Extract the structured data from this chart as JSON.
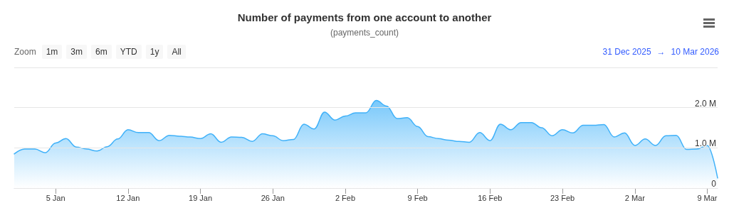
{
  "chart_data": {
    "type": "area",
    "title": "Number of payments from one account to another",
    "subtitle": "(payments_count)",
    "annotations": [
      "Zoom",
      "1m",
      "3m",
      "6m",
      "YTD",
      "1y",
      "All",
      "31 Dec 2025",
      "→",
      "10 Mar 2026"
    ],
    "x": [
      "2026-01-01",
      "2026-01-02",
      "2026-01-03",
      "2026-01-04",
      "2026-01-05",
      "2026-01-06",
      "2026-01-07",
      "2026-01-08",
      "2026-01-09",
      "2026-01-10",
      "2026-01-11",
      "2026-01-12",
      "2026-01-13",
      "2026-01-14",
      "2026-01-15",
      "2026-01-16",
      "2026-01-17",
      "2026-01-18",
      "2026-01-19",
      "2026-01-20",
      "2026-01-21",
      "2026-01-22",
      "2026-01-23",
      "2026-01-24",
      "2026-01-25",
      "2026-01-26",
      "2026-01-27",
      "2026-01-28",
      "2026-01-29",
      "2026-01-30",
      "2026-01-31",
      "2026-02-01",
      "2026-02-02",
      "2026-02-03",
      "2026-02-04",
      "2026-02-05",
      "2026-02-06",
      "2026-02-07",
      "2026-02-08",
      "2026-02-09",
      "2026-02-10",
      "2026-02-11",
      "2026-02-12",
      "2026-02-13",
      "2026-02-14",
      "2026-02-15",
      "2026-02-16",
      "2026-02-17",
      "2026-02-18",
      "2026-02-19",
      "2026-02-20",
      "2026-02-21",
      "2026-02-22",
      "2026-02-23",
      "2026-02-24",
      "2026-02-25",
      "2026-02-26",
      "2026-02-27",
      "2026-02-28",
      "2026-03-01",
      "2026-03-02",
      "2026-03-03",
      "2026-03-04",
      "2026-03-05",
      "2026-03-06",
      "2026-03-07",
      "2026-03-08",
      "2026-03-09",
      "2026-03-10"
    ],
    "values": [
      850000,
      970000,
      970000,
      880000,
      1120000,
      1230000,
      1020000,
      970000,
      920000,
      1030000,
      1220000,
      1450000,
      1380000,
      1380000,
      1180000,
      1310000,
      1290000,
      1270000,
      1230000,
      1350000,
      1140000,
      1270000,
      1260000,
      1160000,
      1350000,
      1300000,
      1180000,
      1210000,
      1590000,
      1470000,
      1890000,
      1690000,
      1790000,
      1870000,
      1870000,
      2180000,
      2040000,
      1730000,
      1750000,
      1530000,
      1280000,
      1230000,
      1190000,
      1160000,
      1140000,
      1380000,
      1180000,
      1590000,
      1450000,
      1630000,
      1630000,
      1500000,
      1300000,
      1450000,
      1370000,
      1560000,
      1560000,
      1580000,
      1270000,
      1370000,
      1060000,
      1220000,
      1060000,
      1300000,
      1310000,
      960000,
      970000,
      1060000,
      250000
    ],
    "color": "#3fb1f9",
    "xlim": [
      "2026-01-01",
      "2026-03-10"
    ],
    "xticks": [
      {
        "value": "2026-01-05",
        "label": "5 Jan"
      },
      {
        "value": "2026-01-12",
        "label": "12 Jan"
      },
      {
        "value": "2026-01-19",
        "label": "19 Jan"
      },
      {
        "value": "2026-01-26",
        "label": "26 Jan"
      },
      {
        "value": "2026-02-02",
        "label": "2 Feb"
      },
      {
        "value": "2026-02-09",
        "label": "9 Feb"
      },
      {
        "value": "2026-02-16",
        "label": "16 Feb"
      },
      {
        "value": "2026-02-23",
        "label": "23 Feb"
      },
      {
        "value": "2026-03-02",
        "label": "2 Mar"
      },
      {
        "value": "2026-03-09",
        "label": "9 Mar"
      }
    ],
    "ylim": [
      0,
      3000000
    ],
    "yticks": [
      0,
      {
        "value": 1000000,
        "label": "1.0 M"
      },
      {
        "value": 2000000,
        "label": "2.0 M"
      },
      {
        "value": 3000000,
        "label": null
      }
    ],
    "grid": "y",
    "marker": "none",
    "line_style": "solid"
  }
}
